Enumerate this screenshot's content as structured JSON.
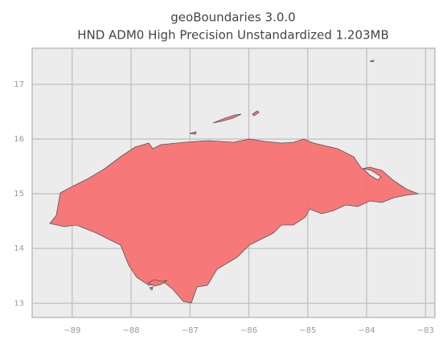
{
  "chart_data": {
    "type": "map",
    "title": "geoBoundaries 3.0.0",
    "subtitle": "HND ADM0 High Precision Unstandardized 1.203MB",
    "xlim": [
      -89.68,
      -82.84
    ],
    "ylim": [
      12.74,
      17.66
    ],
    "xticks": [
      {
        "value": -89,
        "label": "−89"
      },
      {
        "value": -88,
        "label": "−88"
      },
      {
        "value": -87,
        "label": "−87"
      },
      {
        "value": -86,
        "label": "−86"
      },
      {
        "value": -85,
        "label": "−85"
      },
      {
        "value": -84,
        "label": "−84"
      },
      {
        "value": -83,
        "label": "−83"
      }
    ],
    "yticks": [
      13,
      14,
      15,
      16,
      17
    ],
    "grid": true,
    "color": "#f77474"
  }
}
